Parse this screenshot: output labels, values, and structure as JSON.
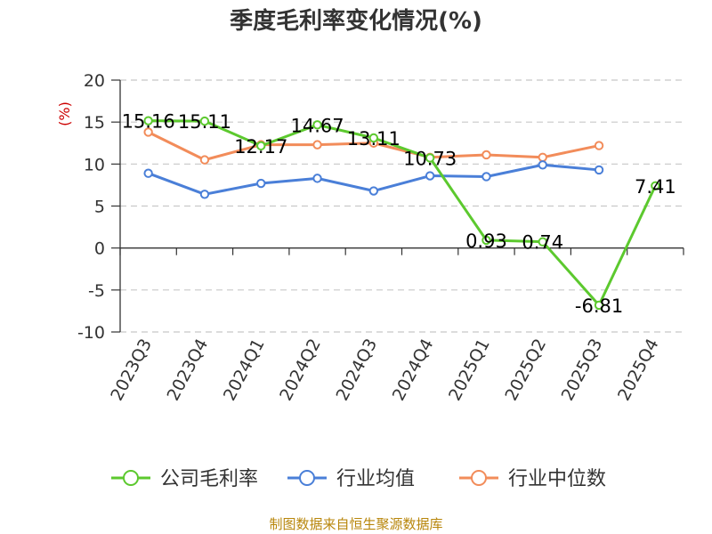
{
  "chart_data": {
    "type": "line",
    "title": "季度毛利率变化情况(%)",
    "ylabel": "(%)",
    "xlabel": "",
    "categories": [
      "2023Q3",
      "2023Q4",
      "2024Q1",
      "2024Q2",
      "2024Q3",
      "2024Q4",
      "2025Q1",
      "2025Q2",
      "2025Q3",
      "2025Q4"
    ],
    "ylim": [
      -10,
      20
    ],
    "yticks": [
      20,
      15,
      10,
      5,
      0,
      -5,
      -10
    ],
    "grid": true,
    "legend_position": "bottom",
    "series": [
      {
        "name": "公司毛利率",
        "color": "#5cc92e",
        "values": [
          15.16,
          15.11,
          12.17,
          14.67,
          13.11,
          10.73,
          0.93,
          0.74,
          -6.81,
          7.41
        ],
        "labels": [
          "15.16",
          "15.11",
          "12.17",
          "14.67",
          "13.11",
          "10.73",
          "0.93",
          "0.74",
          "-6.81",
          "7.41"
        ]
      },
      {
        "name": "行业均值",
        "color": "#4a7fd8",
        "values": [
          8.9,
          6.4,
          7.7,
          8.3,
          6.8,
          8.6,
          8.5,
          9.9,
          9.3,
          null
        ],
        "labels": []
      },
      {
        "name": "行业中位数",
        "color": "#f28c5a",
        "values": [
          13.8,
          10.5,
          12.3,
          12.3,
          12.5,
          10.8,
          11.1,
          10.8,
          12.2,
          null
        ],
        "labels": []
      }
    ]
  },
  "source": "制图数据来自恒生聚源数据库"
}
